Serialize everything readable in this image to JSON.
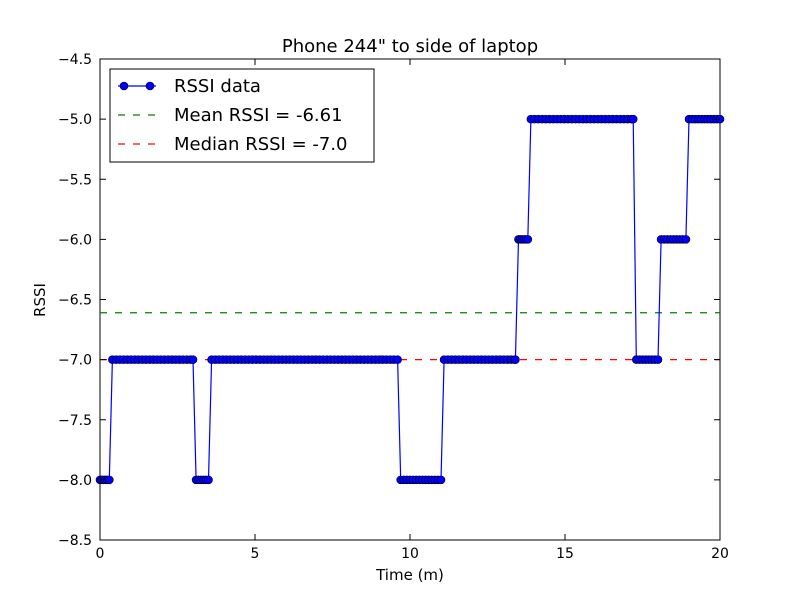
{
  "chart_data": {
    "type": "line",
    "title": "Phone 244\" to side of laptop",
    "xlabel": "Time (m)",
    "ylabel": "RSSI",
    "xlim": [
      0,
      20
    ],
    "ylim": [
      -8.5,
      -4.5
    ],
    "x_ticks": [
      0,
      5,
      10,
      15,
      20
    ],
    "x_tick_labels": [
      "0",
      "5",
      "10",
      "15",
      "20"
    ],
    "y_ticks": [
      -4.5,
      -5.0,
      -5.5,
      -6.0,
      -6.5,
      -7.0,
      -7.5,
      -8.0,
      -8.5
    ],
    "y_tick_labels": [
      "−4.5",
      "−5.0",
      "−5.5",
      "−6.0",
      "−6.5",
      "−7.0",
      "−7.5",
      "−8.0",
      "−8.5"
    ],
    "grid": false,
    "legend_position": "top-left",
    "legend": [
      "RSSI data",
      "Mean RSSI = -6.61",
      "Median RSSI = -7.0"
    ],
    "colors": {
      "data": "#0000ff",
      "mean": "#008000",
      "median": "#ff0000"
    },
    "series": [
      {
        "name": "RSSI data",
        "style": "line-with-circle-markers",
        "segments": [
          {
            "x_start": 0.0,
            "x_end": 0.3,
            "step": 0.06,
            "y": -8.0
          },
          {
            "x_start": 0.4,
            "x_end": 3.0,
            "step": 0.12,
            "y": -7.0
          },
          {
            "x_start": 3.1,
            "x_end": 3.5,
            "step": 0.08,
            "y": -8.0
          },
          {
            "x_start": 3.6,
            "x_end": 9.6,
            "step": 0.12,
            "y": -7.0
          },
          {
            "x_start": 9.7,
            "x_end": 11.0,
            "step": 0.1,
            "y": -8.0
          },
          {
            "x_start": 11.1,
            "x_end": 13.4,
            "step": 0.12,
            "y": -7.0
          },
          {
            "x_start": 13.5,
            "x_end": 13.8,
            "step": 0.06,
            "y": -6.0
          },
          {
            "x_start": 13.9,
            "x_end": 17.2,
            "step": 0.12,
            "y": -5.0
          },
          {
            "x_start": 17.3,
            "x_end": 18.0,
            "step": 0.1,
            "y": -7.0
          },
          {
            "x_start": 18.1,
            "x_end": 18.9,
            "step": 0.1,
            "y": -6.0
          },
          {
            "x_start": 19.0,
            "x_end": 20.0,
            "step": 0.1,
            "y": -5.0
          }
        ]
      },
      {
        "name": "Mean RSSI = -6.61",
        "style": "dashed",
        "y": -6.61
      },
      {
        "name": "Median RSSI = -7.0",
        "style": "dashed",
        "y": -7.0
      }
    ]
  }
}
